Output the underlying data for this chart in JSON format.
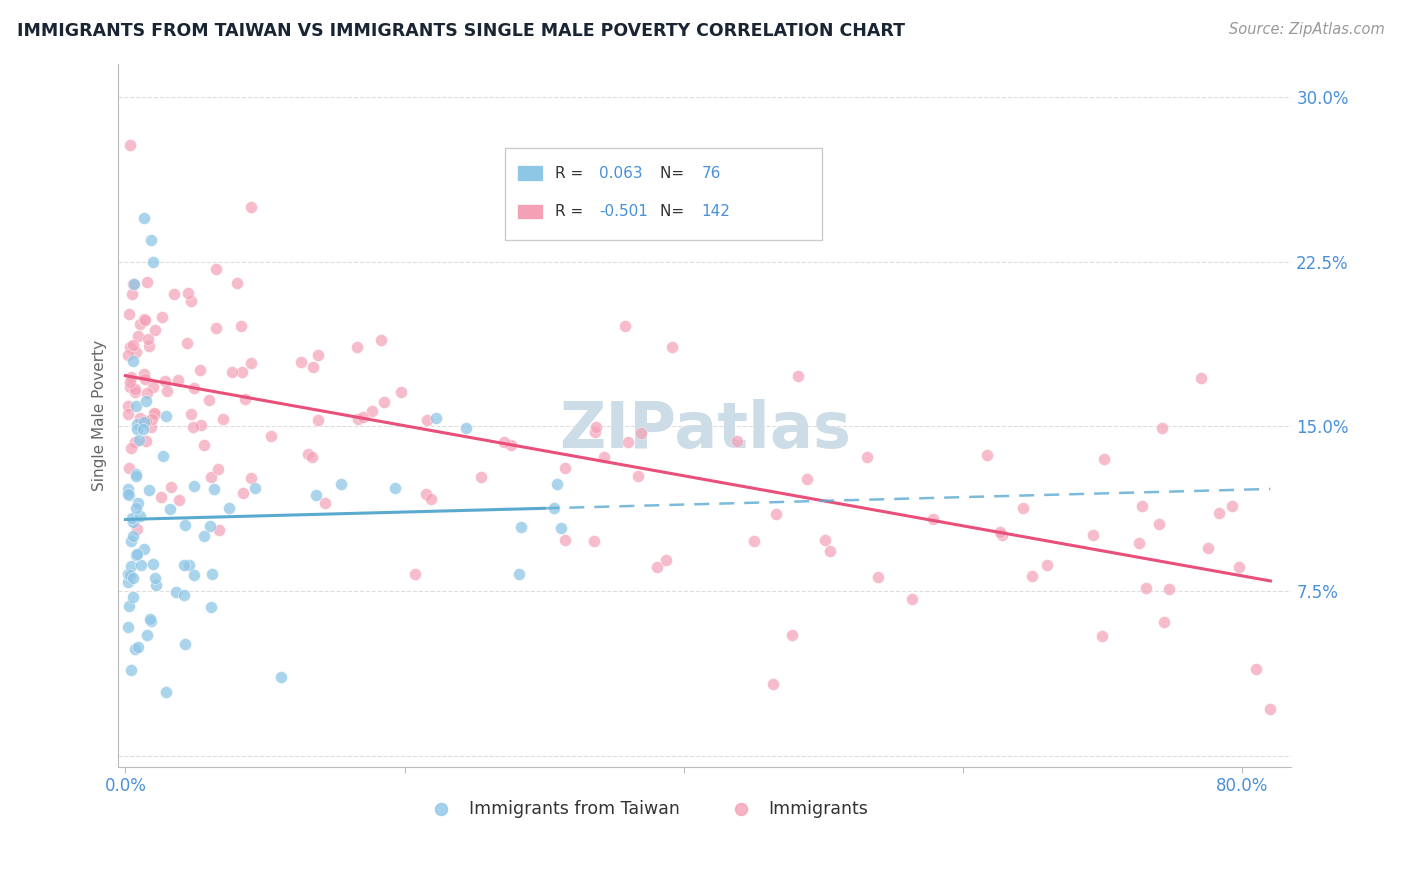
{
  "title": "IMMIGRANTS FROM TAIWAN VS IMMIGRANTS SINGLE MALE POVERTY CORRELATION CHART",
  "source": "Source: ZipAtlas.com",
  "ylabel": "Single Male Poverty",
  "legend_r_blue": "0.063",
  "legend_n_blue": "76",
  "legend_r_pink": "-0.501",
  "legend_n_pink": "142",
  "watermark": "ZIPatlas",
  "blue_color": "#8ec6e6",
  "pink_color": "#f4a0b5",
  "blue_line_color": "#5aaad0",
  "pink_line_color": "#e8507a",
  "title_color": "#1a2533",
  "axis_tick_color": "#4a90d9",
  "ylabel_color": "#666666",
  "grid_color": "#dddddd",
  "source_color": "#999999",
  "watermark_color": "#ccdde8",
  "legend_text_color": "#333333",
  "legend_value_color": "#4a90d9"
}
